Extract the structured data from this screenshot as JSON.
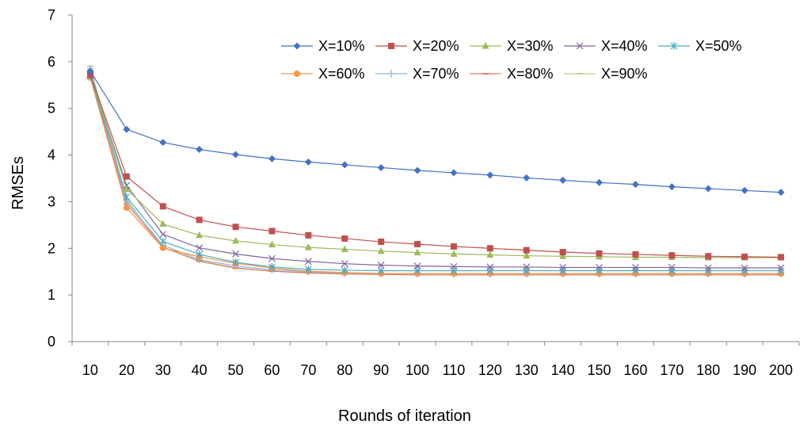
{
  "chart_data": {
    "type": "line",
    "title": "",
    "xlabel": "Rounds of iteration",
    "ylabel": "RMSEs",
    "ylim": [
      0,
      7
    ],
    "yticks": [
      "0",
      "1",
      "2",
      "3",
      "4",
      "5",
      "6",
      "7"
    ],
    "categories": [
      "10",
      "20",
      "30",
      "40",
      "50",
      "60",
      "70",
      "80",
      "90",
      "100",
      "110",
      "120",
      "130",
      "140",
      "150",
      "160",
      "170",
      "180",
      "190",
      "200"
    ],
    "grid": false,
    "legend_position": "top-right",
    "series": [
      {
        "name": "X=10%",
        "color": "#4472C4",
        "marker": "diamond",
        "values": [
          5.8,
          4.55,
          4.27,
          4.12,
          4.01,
          3.92,
          3.85,
          3.79,
          3.73,
          3.67,
          3.62,
          3.57,
          3.51,
          3.46,
          3.41,
          3.37,
          3.32,
          3.28,
          3.24,
          3.2
        ]
      },
      {
        "name": "X=20%",
        "color": "#C0504D",
        "marker": "square",
        "values": [
          5.72,
          3.54,
          2.9,
          2.61,
          2.46,
          2.37,
          2.28,
          2.21,
          2.14,
          2.09,
          2.04,
          2.0,
          1.96,
          1.92,
          1.89,
          1.87,
          1.85,
          1.83,
          1.82,
          1.81
        ]
      },
      {
        "name": "X=30%",
        "color": "#9BBB59",
        "marker": "triangle",
        "values": [
          5.73,
          3.27,
          2.52,
          2.28,
          2.16,
          2.08,
          2.02,
          1.98,
          1.94,
          1.91,
          1.88,
          1.86,
          1.84,
          1.83,
          1.82,
          1.81,
          1.81,
          1.8,
          1.8,
          1.8
        ]
      },
      {
        "name": "X=40%",
        "color": "#8064A2",
        "marker": "x",
        "values": [
          5.71,
          3.35,
          2.3,
          2.01,
          1.88,
          1.78,
          1.72,
          1.67,
          1.64,
          1.62,
          1.61,
          1.6,
          1.6,
          1.59,
          1.59,
          1.59,
          1.59,
          1.58,
          1.58,
          1.58
        ]
      },
      {
        "name": "X=50%",
        "color": "#4BACC6",
        "marker": "star",
        "values": [
          5.7,
          3.1,
          2.15,
          1.87,
          1.7,
          1.6,
          1.55,
          1.53,
          1.52,
          1.52,
          1.52,
          1.52,
          1.52,
          1.52,
          1.52,
          1.52,
          1.52,
          1.52,
          1.52,
          1.52
        ]
      },
      {
        "name": "X=60%",
        "color": "#F79646",
        "marker": "circle",
        "values": [
          5.66,
          2.87,
          2.01,
          1.82,
          1.68,
          1.58,
          1.51,
          1.48,
          1.46,
          1.46,
          1.46,
          1.46,
          1.46,
          1.46,
          1.46,
          1.46,
          1.46,
          1.46,
          1.46,
          1.46
        ]
      },
      {
        "name": "X=70%",
        "color": "#8FB3E3",
        "marker": "plus",
        "values": [
          5.85,
          3.0,
          2.07,
          1.76,
          1.62,
          1.54,
          1.5,
          1.47,
          1.46,
          1.46,
          1.46,
          1.46,
          1.46,
          1.46,
          1.46,
          1.46,
          1.46,
          1.46,
          1.46,
          1.46
        ]
      },
      {
        "name": "X=80%",
        "color": "#E07B6A",
        "marker": "dash",
        "values": [
          5.68,
          2.95,
          2.03,
          1.73,
          1.58,
          1.51,
          1.47,
          1.45,
          1.44,
          1.43,
          1.43,
          1.43,
          1.43,
          1.43,
          1.43,
          1.43,
          1.43,
          1.43,
          1.43,
          1.43
        ]
      },
      {
        "name": "X=90%",
        "color": "#B7CE84",
        "marker": "dash",
        "values": [
          5.9,
          3.05,
          2.02,
          1.72,
          1.57,
          1.51,
          1.48,
          1.46,
          1.45,
          1.45,
          1.45,
          1.45,
          1.45,
          1.45,
          1.45,
          1.45,
          1.45,
          1.45,
          1.45,
          1.45
        ]
      }
    ]
  }
}
